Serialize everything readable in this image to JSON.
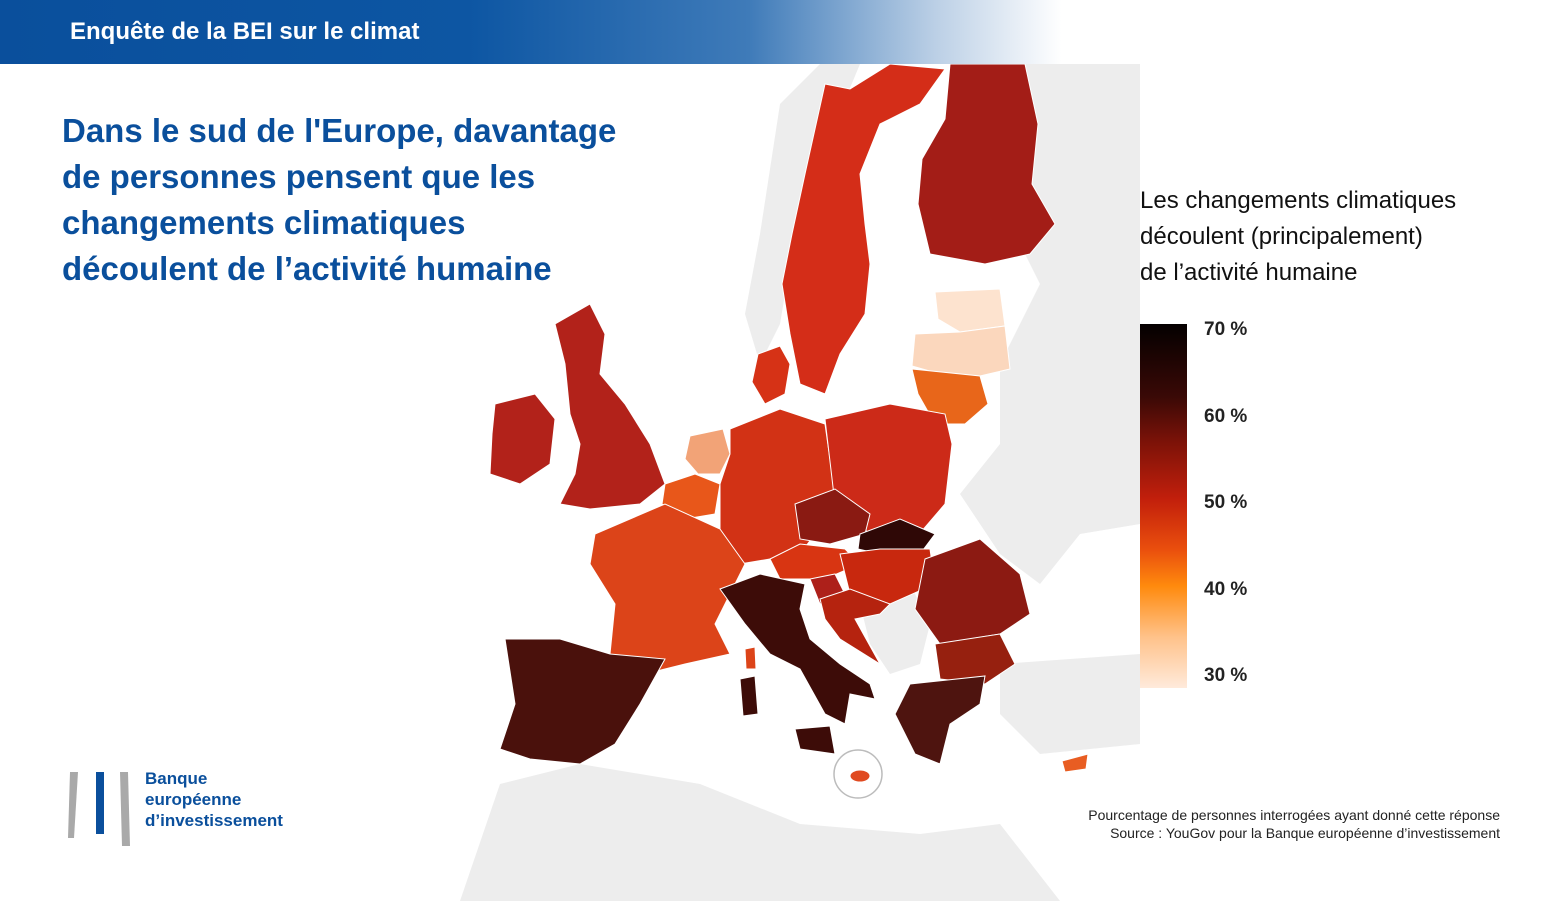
{
  "banner": {
    "title": "Enquête de la BEI sur le climat"
  },
  "headline": "Dans le sud de l'Europe, davantage de personnes pensent que les changements climatiques découlent de l’activité humaine",
  "legend": {
    "title_lines": [
      "Les changements climatiques",
      "découlent (principalement)",
      "de l’activité humaine"
    ],
    "ticks": [
      "70 %",
      "60 %",
      "50 %",
      "40 %",
      "30 %"
    ],
    "colors": [
      "#040000",
      "#3a0906",
      "#c21f0c",
      "#ff8a0d",
      "#ffeadb"
    ]
  },
  "logo": {
    "lines": [
      "Banque",
      "européenne",
      "d’investissement"
    ]
  },
  "source": {
    "line1": "Pourcentage de personnes interrogées ayant donné cette réponse",
    "line2": "Source : YouGov pour la Banque européenne d’investissement"
  },
  "map_colors": {
    "land_gray": "#ededed",
    "spain": "#4a110c",
    "italy": "#3d0c08",
    "greece": "#4e140f",
    "slovakia": "#2f0806",
    "czechia": "#8a1a12",
    "romania": "#8c1a12",
    "bulgaria": "#96200f",
    "croatia": "#b5230f",
    "hungary": "#c8280e",
    "austria": "#d83512",
    "germany": "#d23215",
    "poland": "#cc2a18",
    "sweden": "#d42d18",
    "finland": "#a31d17",
    "denmark": "#d63216",
    "uk": "#b2221a",
    "ireland": "#b2221a",
    "france": "#dc4419",
    "belgium": "#e8571a",
    "netherlands": "#f2a377",
    "lithuania": "#e8661a",
    "latvia": "#fbd7bd",
    "estonia": "#fde3cf",
    "cyprus": "#e85d22",
    "malta": "#e04a20",
    "slovenia": "#ad201a"
  }
}
